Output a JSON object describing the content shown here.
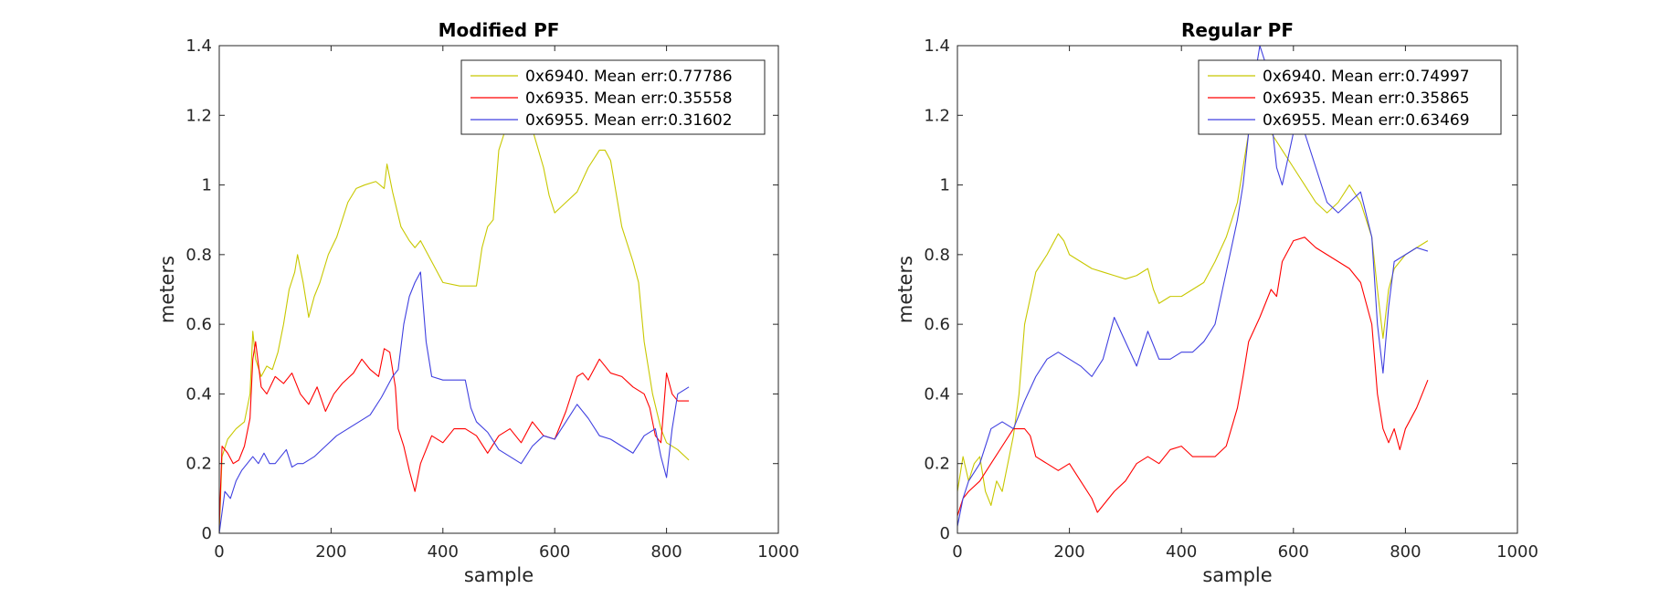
{
  "chart_data": [
    {
      "type": "line",
      "title": "Modified PF",
      "xlabel": "sample",
      "ylabel": "meters",
      "xlim": [
        0,
        1000
      ],
      "ylim": [
        0,
        1.4
      ],
      "xticks": [
        0,
        200,
        400,
        600,
        800,
        1000
      ],
      "yticks": [
        0,
        0.2,
        0.4,
        0.6,
        0.8,
        1,
        1.2,
        1.4
      ],
      "xtick_labels": [
        "0",
        "200",
        "400",
        "600",
        "800",
        "1000"
      ],
      "ytick_labels": [
        "0",
        "0.2",
        "0.4",
        "0.6",
        "0.8",
        "1",
        "1.2",
        "1.4"
      ],
      "grid": false,
      "legend_position": "top-right",
      "series": [
        {
          "name": "0x6940. Mean err:0.77786",
          "color": "#c8c800",
          "x": [
            0,
            5,
            15,
            30,
            45,
            55,
            60,
            65,
            75,
            85,
            95,
            105,
            115,
            125,
            135,
            140,
            150,
            160,
            170,
            180,
            195,
            210,
            230,
            245,
            260,
            280,
            295,
            300,
            310,
            325,
            340,
            350,
            360,
            380,
            400,
            430,
            460,
            470,
            480,
            490,
            500,
            510,
            520,
            540,
            560,
            580,
            590,
            600,
            620,
            640,
            660,
            680,
            690,
            700,
            720,
            740,
            750,
            760,
            775,
            790,
            800,
            820,
            840
          ],
          "y": [
            0.0,
            0.22,
            0.27,
            0.3,
            0.32,
            0.4,
            0.58,
            0.5,
            0.45,
            0.48,
            0.47,
            0.52,
            0.6,
            0.7,
            0.75,
            0.8,
            0.72,
            0.62,
            0.68,
            0.72,
            0.8,
            0.85,
            0.95,
            0.99,
            1.0,
            1.01,
            0.99,
            1.06,
            0.98,
            0.88,
            0.84,
            0.82,
            0.84,
            0.78,
            0.72,
            0.71,
            0.71,
            0.82,
            0.88,
            0.9,
            1.1,
            1.15,
            1.18,
            1.17,
            1.16,
            1.05,
            0.97,
            0.92,
            0.95,
            0.98,
            1.05,
            1.1,
            1.1,
            1.07,
            0.88,
            0.78,
            0.72,
            0.55,
            0.4,
            0.3,
            0.26,
            0.24,
            0.21
          ]
        },
        {
          "name": "0x6935. Mean err:0.35558",
          "color": "#ff0000",
          "x": [
            0,
            5,
            15,
            25,
            35,
            45,
            55,
            60,
            65,
            75,
            85,
            100,
            115,
            130,
            145,
            160,
            175,
            190,
            205,
            220,
            240,
            255,
            270,
            285,
            295,
            305,
            315,
            320,
            330,
            340,
            350,
            360,
            380,
            400,
            420,
            440,
            460,
            480,
            500,
            520,
            540,
            560,
            580,
            600,
            620,
            640,
            650,
            660,
            680,
            700,
            720,
            740,
            760,
            770,
            780,
            790,
            800,
            810,
            820,
            840
          ],
          "y": [
            0.02,
            0.25,
            0.23,
            0.2,
            0.21,
            0.25,
            0.33,
            0.5,
            0.55,
            0.42,
            0.4,
            0.45,
            0.43,
            0.46,
            0.4,
            0.37,
            0.42,
            0.35,
            0.4,
            0.43,
            0.46,
            0.5,
            0.47,
            0.45,
            0.53,
            0.52,
            0.42,
            0.3,
            0.25,
            0.18,
            0.12,
            0.2,
            0.28,
            0.26,
            0.3,
            0.3,
            0.28,
            0.23,
            0.28,
            0.3,
            0.26,
            0.32,
            0.28,
            0.27,
            0.35,
            0.45,
            0.46,
            0.44,
            0.5,
            0.46,
            0.45,
            0.42,
            0.4,
            0.36,
            0.28,
            0.26,
            0.46,
            0.4,
            0.38,
            0.38
          ]
        },
        {
          "name": "0x6955. Mean err:0.31602",
          "color": "#4040e0",
          "x": [
            0,
            10,
            20,
            30,
            40,
            50,
            60,
            70,
            80,
            90,
            100,
            110,
            120,
            130,
            140,
            150,
            170,
            190,
            210,
            230,
            250,
            270,
            290,
            310,
            320,
            330,
            340,
            350,
            360,
            370,
            380,
            400,
            420,
            440,
            450,
            460,
            480,
            500,
            520,
            540,
            560,
            580,
            600,
            620,
            640,
            660,
            680,
            700,
            720,
            740,
            760,
            780,
            790,
            800,
            810,
            820,
            840
          ],
          "y": [
            0.0,
            0.12,
            0.1,
            0.15,
            0.18,
            0.2,
            0.22,
            0.2,
            0.23,
            0.2,
            0.2,
            0.22,
            0.24,
            0.19,
            0.2,
            0.2,
            0.22,
            0.25,
            0.28,
            0.3,
            0.32,
            0.34,
            0.39,
            0.45,
            0.47,
            0.6,
            0.68,
            0.72,
            0.75,
            0.55,
            0.45,
            0.44,
            0.44,
            0.44,
            0.36,
            0.32,
            0.29,
            0.24,
            0.22,
            0.2,
            0.25,
            0.28,
            0.27,
            0.32,
            0.37,
            0.33,
            0.28,
            0.27,
            0.25,
            0.23,
            0.28,
            0.3,
            0.22,
            0.16,
            0.3,
            0.4,
            0.42
          ]
        }
      ]
    },
    {
      "type": "line",
      "title": "Regular PF",
      "xlabel": "sample",
      "ylabel": "meters",
      "xlim": [
        0,
        1000
      ],
      "ylim": [
        0,
        1.4
      ],
      "xticks": [
        0,
        200,
        400,
        600,
        800,
        1000
      ],
      "yticks": [
        0,
        0.2,
        0.4,
        0.6,
        0.8,
        1,
        1.2,
        1.4
      ],
      "xtick_labels": [
        "0",
        "200",
        "400",
        "600",
        "800",
        "1000"
      ],
      "ytick_labels": [
        "0",
        "0.2",
        "0.4",
        "0.6",
        "0.8",
        "1",
        "1.2",
        "1.4"
      ],
      "grid": false,
      "legend_position": "top-right",
      "series": [
        {
          "name": "0x6940. Mean err:0.74997",
          "color": "#c8c800",
          "x": [
            0,
            10,
            20,
            30,
            40,
            50,
            60,
            70,
            80,
            90,
            100,
            110,
            120,
            140,
            160,
            180,
            190,
            200,
            220,
            240,
            260,
            280,
            300,
            320,
            340,
            350,
            360,
            380,
            400,
            420,
            440,
            460,
            480,
            500,
            510,
            520,
            530,
            540,
            550,
            560,
            580,
            600,
            620,
            640,
            660,
            680,
            700,
            720,
            740,
            750,
            760,
            770,
            780,
            800,
            820,
            840
          ],
          "y": [
            0.12,
            0.22,
            0.15,
            0.2,
            0.22,
            0.12,
            0.08,
            0.15,
            0.12,
            0.2,
            0.28,
            0.4,
            0.6,
            0.75,
            0.8,
            0.86,
            0.84,
            0.8,
            0.78,
            0.76,
            0.75,
            0.74,
            0.73,
            0.74,
            0.76,
            0.7,
            0.66,
            0.68,
            0.68,
            0.7,
            0.72,
            0.78,
            0.85,
            0.95,
            1.05,
            1.15,
            1.2,
            1.3,
            1.25,
            1.15,
            1.1,
            1.05,
            1.0,
            0.95,
            0.92,
            0.95,
            1.0,
            0.95,
            0.85,
            0.7,
            0.56,
            0.7,
            0.76,
            0.8,
            0.82,
            0.84
          ]
        },
        {
          "name": "0x6935. Mean err:0.35865",
          "color": "#ff0000",
          "x": [
            0,
            10,
            20,
            40,
            60,
            80,
            100,
            120,
            130,
            140,
            160,
            180,
            200,
            220,
            240,
            250,
            260,
            280,
            300,
            320,
            340,
            360,
            380,
            400,
            420,
            440,
            460,
            480,
            500,
            510,
            520,
            540,
            560,
            570,
            580,
            600,
            620,
            640,
            660,
            680,
            700,
            720,
            740,
            750,
            760,
            770,
            780,
            790,
            800,
            820,
            840
          ],
          "y": [
            0.05,
            0.1,
            0.12,
            0.15,
            0.2,
            0.25,
            0.3,
            0.3,
            0.28,
            0.22,
            0.2,
            0.18,
            0.2,
            0.15,
            0.1,
            0.06,
            0.08,
            0.12,
            0.15,
            0.2,
            0.22,
            0.2,
            0.24,
            0.25,
            0.22,
            0.22,
            0.22,
            0.25,
            0.36,
            0.45,
            0.55,
            0.62,
            0.7,
            0.68,
            0.78,
            0.84,
            0.85,
            0.82,
            0.8,
            0.78,
            0.76,
            0.72,
            0.6,
            0.4,
            0.3,
            0.26,
            0.3,
            0.24,
            0.3,
            0.36,
            0.44
          ]
        },
        {
          "name": "0x6955. Mean err:0.63469",
          "color": "#4040e0",
          "x": [
            0,
            10,
            20,
            40,
            60,
            80,
            100,
            120,
            140,
            160,
            180,
            200,
            220,
            240,
            260,
            280,
            300,
            320,
            340,
            360,
            380,
            400,
            420,
            440,
            460,
            480,
            500,
            510,
            520,
            530,
            540,
            550,
            560,
            570,
            580,
            600,
            620,
            640,
            660,
            680,
            700,
            720,
            740,
            750,
            760,
            770,
            780,
            800,
            820,
            840
          ],
          "y": [
            0.02,
            0.1,
            0.15,
            0.2,
            0.3,
            0.32,
            0.3,
            0.38,
            0.45,
            0.5,
            0.52,
            0.5,
            0.48,
            0.45,
            0.5,
            0.62,
            0.55,
            0.48,
            0.58,
            0.5,
            0.5,
            0.52,
            0.52,
            0.55,
            0.6,
            0.75,
            0.9,
            1.0,
            1.15,
            1.3,
            1.4,
            1.35,
            1.2,
            1.05,
            1.0,
            1.15,
            1.15,
            1.05,
            0.95,
            0.92,
            0.95,
            0.98,
            0.85,
            0.6,
            0.46,
            0.65,
            0.78,
            0.8,
            0.82,
            0.81
          ]
        }
      ]
    }
  ]
}
